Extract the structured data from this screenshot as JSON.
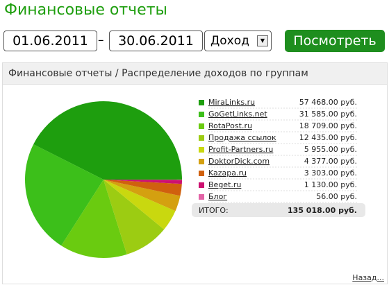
{
  "header": {
    "title": "Финансовые отчеты"
  },
  "form": {
    "date_from": "01.06.2011",
    "separator": "–",
    "date_to": "30.06.2011",
    "select": "Доход",
    "button": "Посмотреть"
  },
  "panel": {
    "title": "Финансовые отчеты / Распределение доходов по группам",
    "total_label": "ИТОГО:",
    "total": "135 018.00 руб.",
    "back_link": "Назад..."
  },
  "chart_data": {
    "type": "pie",
    "categories": [
      "MiraLinks.ru",
      "GoGetLinks.net",
      "RotaPost.ru",
      "Продажа ссылок",
      "Profit-Partners.ru",
      "DoktorDick.com",
      "Kazapa.ru",
      "Beget.ru",
      "Блог"
    ],
    "values": [
      57468,
      31585,
      18709,
      12435,
      5955,
      4377,
      3303,
      1130,
      56
    ],
    "value_labels": [
      "57 468.00 руб.",
      "31 585.00 руб.",
      "18 709.00 руб.",
      "12 435.00 руб.",
      "5 955.00 руб.",
      "4 377.00 руб.",
      "3 303.00 руб.",
      "1 130.00 руб.",
      "56.00 руб."
    ],
    "colors": [
      "#1e9e0e",
      "#3cbf1a",
      "#6acb10",
      "#9ccc12",
      "#c9d80f",
      "#d4a010",
      "#d0600e",
      "#cc1070",
      "#e263a6"
    ]
  }
}
